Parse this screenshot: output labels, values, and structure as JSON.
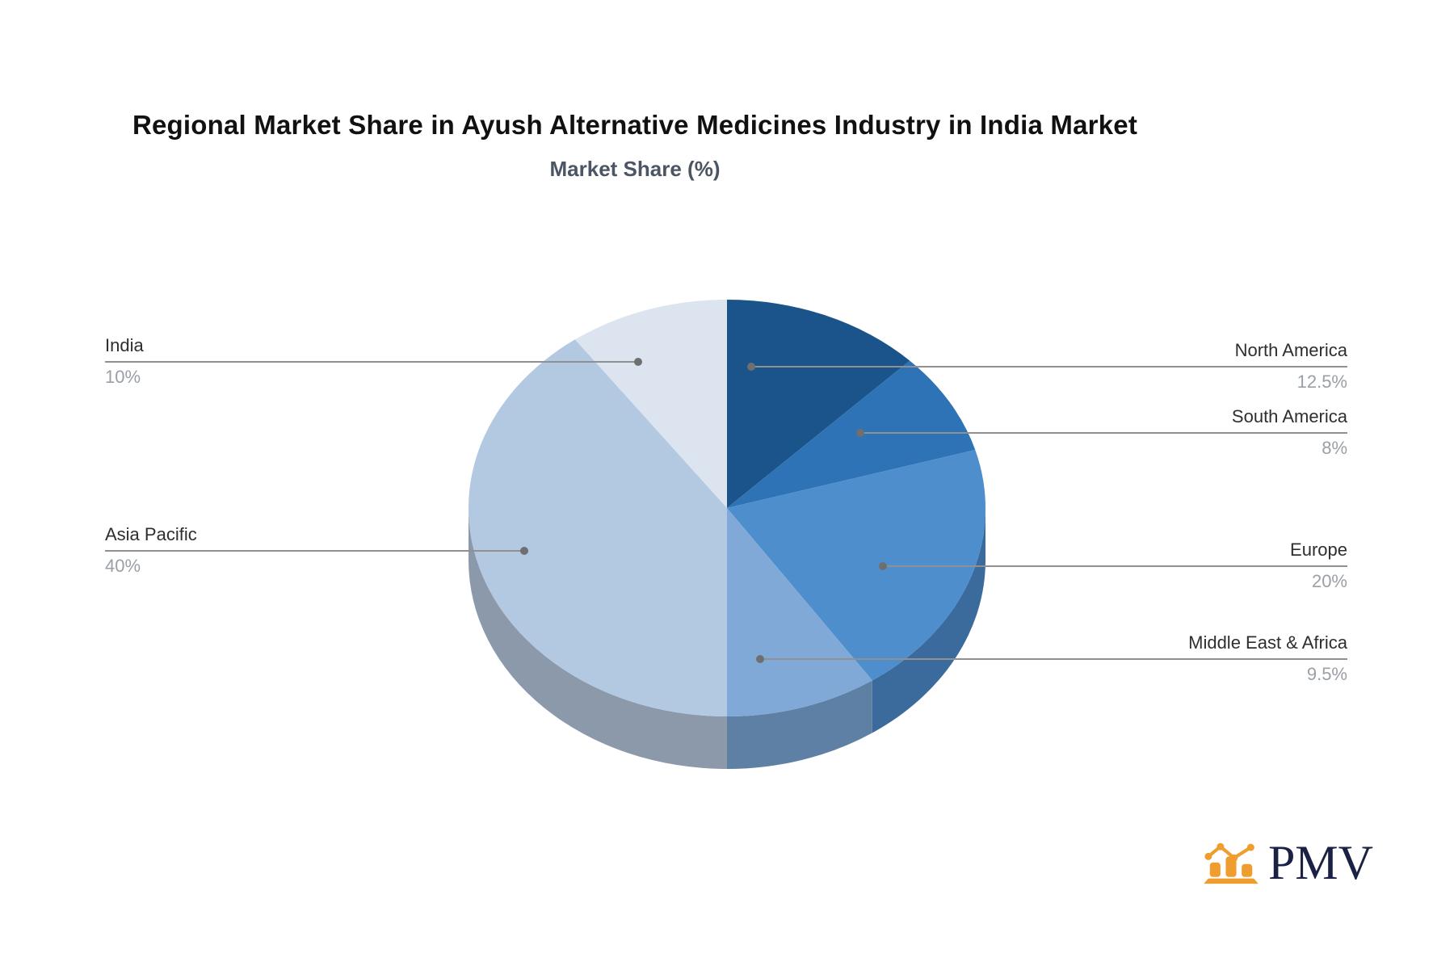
{
  "title": "Regional Market Share in Ayush Alternative Medicines Industry in India Market",
  "subtitle": "Market Share (%)",
  "logo": {
    "text": "PMV",
    "icon": "bar-chart-trend-icon",
    "icon_color": "#f09d2f",
    "text_color": "#1b2145"
  },
  "chart_data": {
    "type": "pie",
    "title": "Regional Market Share in Ayush Alternative Medicines Industry in India Market",
    "subtitle": "Market Share (%)",
    "unit": "percent",
    "effect": "3d-depth",
    "start_angle_deg": 0,
    "direction": "clockwise from 12 o'clock",
    "legend_position": "callout labels on both sides",
    "label_color": "#2e2e2e",
    "value_color": "#9aa0a6",
    "callout_line_color": "#909090",
    "callout_dot_color": "#6f6f6f",
    "slices": [
      {
        "label": "North America",
        "value": 12.5,
        "value_label": "12.5%",
        "color": "#1b548b",
        "depth_color": "#16436e"
      },
      {
        "label": "South America",
        "value": 8,
        "value_label": "8%",
        "color": "#2e73b5",
        "depth_color": "#255c91"
      },
      {
        "label": "Europe",
        "value": 20,
        "value_label": "20%",
        "color": "#4e8ecd",
        "depth_color": "#3a6b9c"
      },
      {
        "label": "Middle East & Africa",
        "value": 9.5,
        "value_label": "9.5%",
        "color": "#80a9d7",
        "depth_color": "#5e80a5"
      },
      {
        "label": "Asia Pacific",
        "value": 40,
        "value_label": "40%",
        "color": "#b3c9e2",
        "depth_color": "#8c99ab"
      },
      {
        "label": "India",
        "value": 10,
        "value_label": "10%",
        "color": "#dce4ef",
        "depth_color": "#a8b2c0"
      }
    ]
  }
}
